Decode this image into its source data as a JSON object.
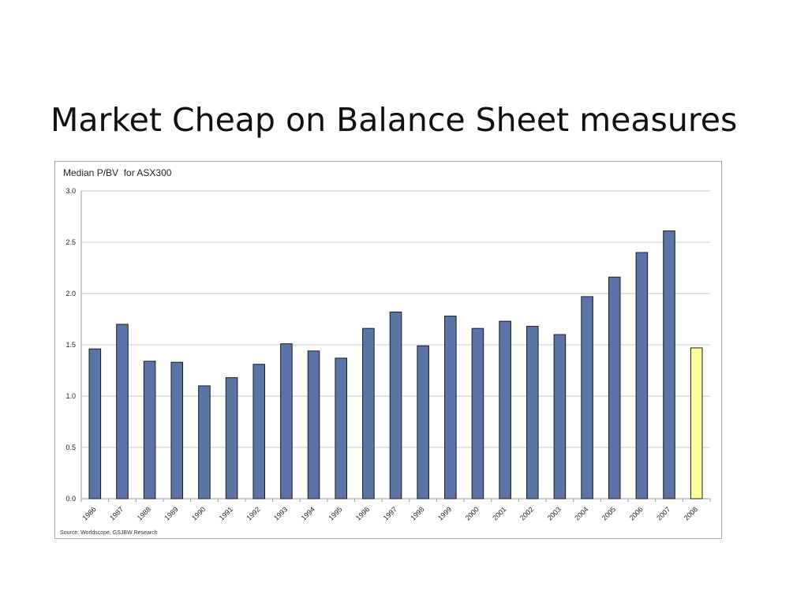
{
  "slide": {
    "title": "Market Cheap on Balance Sheet measures"
  },
  "chart_data": {
    "type": "bar",
    "title": "Median P/BV  for ASX300",
    "xlabel": "",
    "ylabel": "",
    "source": "Source: Worldscope, GSJBW Research",
    "categories": [
      "1986",
      "1987",
      "1988",
      "1989",
      "1990",
      "1991",
      "1992",
      "1993",
      "1994",
      "1995",
      "1996",
      "1997",
      "1998",
      "1999",
      "2000",
      "2001",
      "2002",
      "2003",
      "2004",
      "2005",
      "2006",
      "2007",
      "2008"
    ],
    "values": [
      1.46,
      1.7,
      1.34,
      1.33,
      1.1,
      1.18,
      1.31,
      1.51,
      1.44,
      1.37,
      1.66,
      1.82,
      1.49,
      1.78,
      1.66,
      1.73,
      1.68,
      1.6,
      1.97,
      2.16,
      2.4,
      2.61,
      1.47
    ],
    "highlight_index": 22,
    "ylim": [
      0,
      3.0
    ],
    "yticks": [
      "0.0",
      "0.5",
      "1.0",
      "1.5",
      "2.0",
      "2.5",
      "3.0"
    ],
    "grid": true,
    "colors": {
      "bar": "#5b74a8",
      "bar_highlight": "#ffff99",
      "bar_edge": "#1a1a1a",
      "grid": "#c8c8c8"
    }
  }
}
